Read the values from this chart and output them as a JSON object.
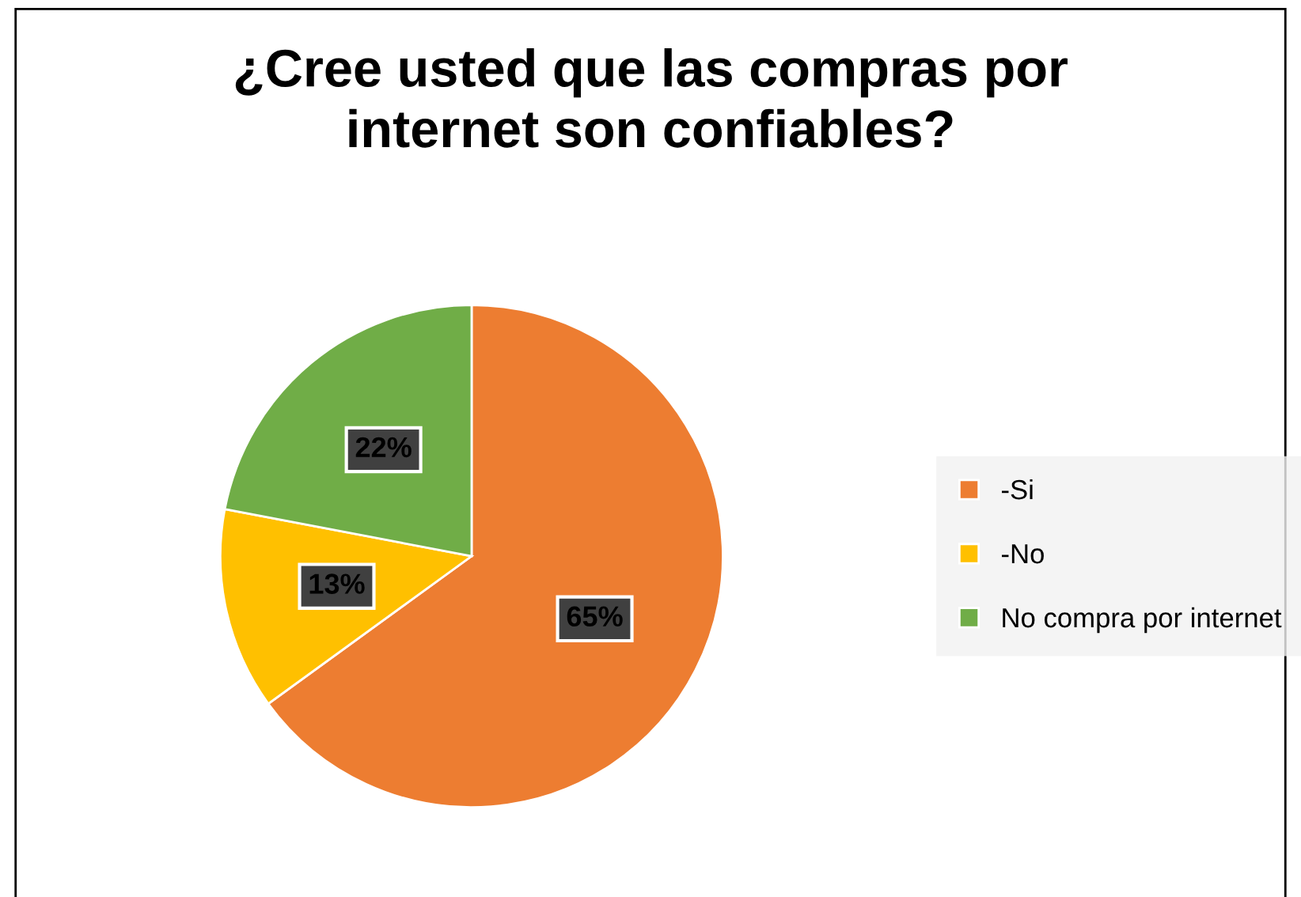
{
  "chart_data": {
    "type": "pie",
    "title": "¿Cree usted que las compras por\ninternet son confiables?",
    "categories": [
      "-Si",
      "-No",
      "No compra por internet"
    ],
    "values": [
      65,
      13,
      22
    ],
    "colors": [
      "#ed7d31",
      "#ffc000",
      "#70ad47"
    ],
    "value_labels": [
      "65%",
      "13%",
      "22%"
    ],
    "legend": "right"
  }
}
